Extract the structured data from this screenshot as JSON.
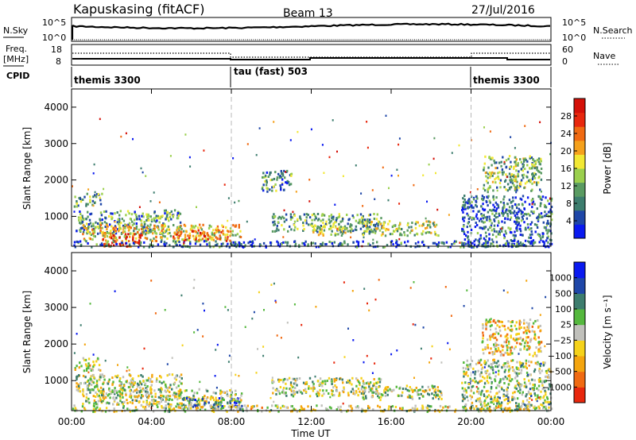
{
  "header": {
    "station": "Kapuskasing (fitACF)",
    "beam": "Beam 13",
    "date": "27/Jul/2016"
  },
  "panels": {
    "nsky_label": "N.Sky",
    "nsky_ticks": [
      "10^5",
      "10^0"
    ],
    "nsearch_label": "N.Search",
    "nsearch_ticks": [
      "10^5",
      "10^0"
    ],
    "freq_label_1": "Freq.",
    "freq_label_2": "[MHz]",
    "freq_ticks": [
      "18",
      "8"
    ],
    "nave_label": "Nave",
    "nave_ticks": [
      "60",
      "0"
    ],
    "cpid_label": "CPID"
  },
  "cpid_segments": [
    {
      "label": "themis 3300",
      "start_hour": 0
    },
    {
      "label": "tau (fast) 503",
      "start_hour": 8
    },
    {
      "label": "themis 3300",
      "start_hour": 20
    }
  ],
  "colors": {
    "power": [
      "#0a1af0",
      "#1f47a8",
      "#3d7d6e",
      "#5a9b62",
      "#9bd04e",
      "#f2e834",
      "#f5a11c",
      "#f06a12",
      "#e8270d",
      "#d41008"
    ],
    "velocity": [
      "#0a1af0",
      "#1f47a8",
      "#3d7d6e",
      "#55b83e",
      "#c0c0bb",
      "#f5d21a",
      "#f4a50f",
      "#f06a12",
      "#e8270d"
    ]
  },
  "chart_data": [
    {
      "type": "heatmap",
      "title": "Power",
      "ylabel": "Slant Range [km]",
      "colorbar_label": "Power [dB]",
      "colorbar_ticks": [
        "28",
        "24",
        "20",
        "16",
        "12",
        "8",
        "4"
      ],
      "ylim": [
        180,
        4500
      ],
      "yticks": [
        "4000",
        "3000",
        "2000",
        "1000"
      ],
      "xlim": [
        0,
        24
      ],
      "xticks": [
        "00:00",
        "04:00",
        "08:00",
        "12:00",
        "16:00",
        "20:00",
        "00:00"
      ],
      "xlabel": "",
      "bands": [
        {
          "t0": 0.1,
          "t1": 1.5,
          "r0": 1300,
          "r1": 1650,
          "level": 0.35
        },
        {
          "t0": 0.2,
          "t1": 5.5,
          "r0": 550,
          "r1": 1200,
          "level": 0.3
        },
        {
          "t0": 0.5,
          "t1": 8.5,
          "r0": 350,
          "r1": 800,
          "level": 0.55
        },
        {
          "t0": 1.5,
          "t1": 3.5,
          "r0": 200,
          "r1": 550,
          "level": 0.85
        },
        {
          "t0": 5.0,
          "t1": 7.8,
          "r0": 350,
          "r1": 650,
          "level": 0.75
        },
        {
          "t0": 10.0,
          "t1": 15.5,
          "r0": 600,
          "r1": 1100,
          "level": 0.35
        },
        {
          "t0": 12.0,
          "t1": 14.0,
          "r0": 500,
          "r1": 750,
          "level": 0.5
        },
        {
          "t0": 14.5,
          "t1": 18.5,
          "r0": 500,
          "r1": 900,
          "level": 0.45
        },
        {
          "t0": 19.5,
          "t1": 24.0,
          "r0": 200,
          "r1": 1600,
          "level": 0.2
        },
        {
          "t0": 20.5,
          "t1": 23.5,
          "r0": 1700,
          "r1": 2700,
          "level": 0.4
        },
        {
          "t0": 9.5,
          "t1": 11.0,
          "r0": 1700,
          "r1": 2300,
          "level": 0.3
        },
        {
          "t0": 0.0,
          "t1": 24.0,
          "r0": 180,
          "r1": 350,
          "level": 0.2
        }
      ]
    },
    {
      "type": "heatmap",
      "title": "Velocity",
      "ylabel": "Slant Range [km]",
      "colorbar_label": "Velocity [m s⁻¹]",
      "colorbar_ticks": [
        "1000",
        "500",
        "100",
        "25",
        "−25",
        "−100",
        "−500",
        "−1000"
      ],
      "ylim": [
        180,
        4500
      ],
      "yticks": [
        "4000",
        "3000",
        "2000",
        "1000"
      ],
      "xlim": [
        0,
        24
      ],
      "xticks": [
        "00:00",
        "04:00",
        "08:00",
        "12:00",
        "16:00",
        "20:00",
        "00:00"
      ],
      "xlabel": "Time UT",
      "bands": [
        {
          "t0": 0.1,
          "t1": 1.5,
          "r0": 1300,
          "r1": 1650,
          "level": 0.45
        },
        {
          "t0": 0.2,
          "t1": 5.5,
          "r0": 550,
          "r1": 1200,
          "level": 0.5
        },
        {
          "t0": 0.5,
          "t1": 8.5,
          "r0": 350,
          "r1": 800,
          "level": 0.5
        },
        {
          "t0": 5.5,
          "t1": 8.5,
          "r0": 250,
          "r1": 550,
          "level": 0.75
        },
        {
          "t0": 10.0,
          "t1": 15.5,
          "r0": 600,
          "r1": 1100,
          "level": 0.5
        },
        {
          "t0": 14.5,
          "t1": 18.5,
          "r0": 500,
          "r1": 900,
          "level": 0.5
        },
        {
          "t0": 19.5,
          "t1": 24.0,
          "r0": 200,
          "r1": 1600,
          "level": 0.55
        },
        {
          "t0": 20.5,
          "t1": 23.5,
          "r0": 1700,
          "r1": 2700,
          "level": 0.38
        },
        {
          "t0": 0.0,
          "t1": 24.0,
          "r0": 180,
          "r1": 350,
          "level": 0.45
        }
      ]
    }
  ]
}
